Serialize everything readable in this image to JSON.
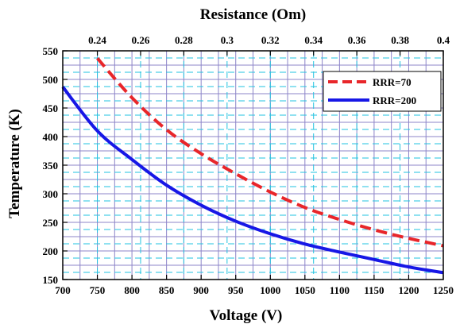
{
  "chart_data": {
    "type": "line",
    "xlabel": "Voltage (V)",
    "ylabel": "Temperature  (K)",
    "top_xlabel": "Resistance (Om)",
    "xlim": [
      700,
      1250
    ],
    "ylim": [
      150,
      550
    ],
    "x_ticks": [
      "700",
      "750",
      "800",
      "850",
      "900",
      "950",
      "1000",
      "1050",
      "1100",
      "1150",
      "1200",
      "1250"
    ],
    "y_ticks": [
      "150",
      "200",
      "250",
      "300",
      "350",
      "400",
      "450",
      "500",
      "550"
    ],
    "top_x_ticks": [
      "0.24",
      "0.26",
      "0.28",
      "0.3",
      "0.32",
      "0.34",
      "0.36",
      "0.38",
      "0.4"
    ],
    "grid": true,
    "legend_position": "top-right",
    "series": [
      {
        "name": "RRR=70",
        "color": "#e8262a",
        "style": "dashed",
        "points": [
          [
            750,
            537
          ],
          [
            800,
            468
          ],
          [
            850,
            412
          ],
          [
            900,
            370
          ],
          [
            950,
            335
          ],
          [
            1000,
            303
          ],
          [
            1050,
            276
          ],
          [
            1100,
            255
          ],
          [
            1150,
            237
          ],
          [
            1200,
            222
          ],
          [
            1250,
            209
          ]
        ]
      },
      {
        "name": "RRR=200",
        "color": "#1717e6",
        "style": "solid",
        "points": [
          [
            700,
            487
          ],
          [
            750,
            410
          ],
          [
            800,
            360
          ],
          [
            850,
            315
          ],
          [
            900,
            280
          ],
          [
            950,
            252
          ],
          [
            1000,
            230
          ],
          [
            1050,
            212
          ],
          [
            1100,
            198
          ],
          [
            1150,
            185
          ],
          [
            1200,
            172
          ],
          [
            1250,
            162
          ]
        ]
      }
    ]
  }
}
